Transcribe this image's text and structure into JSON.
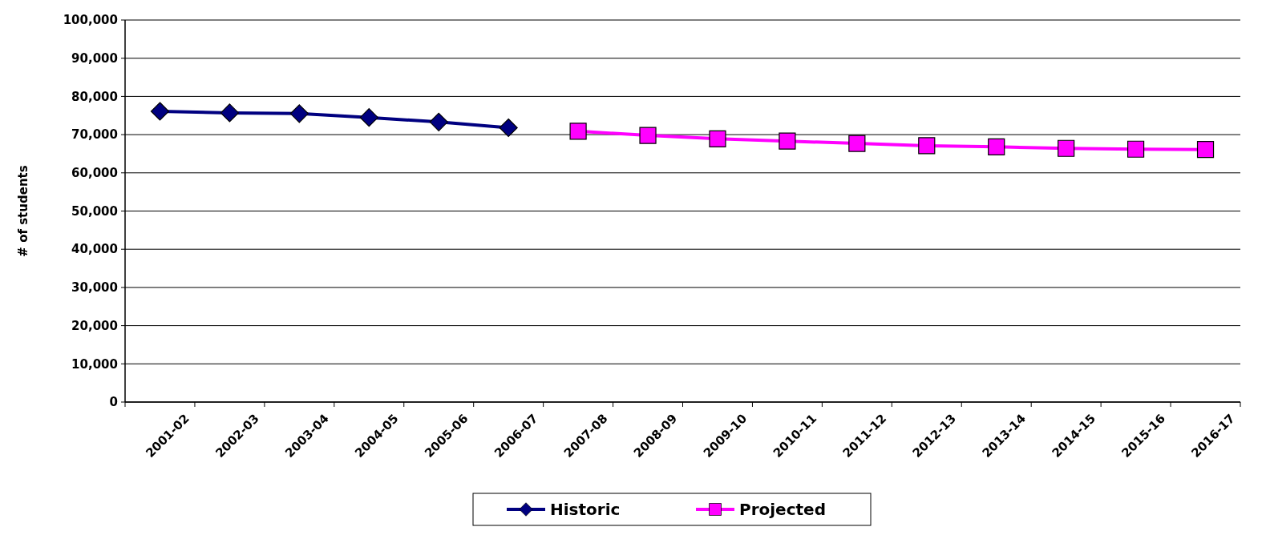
{
  "chart_data": {
    "type": "line",
    "ylabel": "# of students",
    "categories": [
      "2001-02",
      "2002-03",
      "2003-04",
      "2004-05",
      "2005-06",
      "2006-07",
      "2007-08",
      "2008-09",
      "2009-10",
      "2010-11",
      "2011-12",
      "2012-13",
      "2013-14",
      "2014-15",
      "2015-16",
      "2016-17"
    ],
    "series": [
      {
        "name": "Historic",
        "color": "#000080",
        "marker": "diamond",
        "values": [
          76100,
          75700,
          75500,
          74500,
          73300,
          71800,
          null,
          null,
          null,
          null,
          null,
          null,
          null,
          null,
          null,
          null
        ]
      },
      {
        "name": "Projected",
        "color": "#ff00ff",
        "marker": "square",
        "values": [
          null,
          null,
          null,
          null,
          null,
          null,
          70900,
          69800,
          68900,
          68300,
          67700,
          67100,
          66800,
          66400,
          66200,
          66100
        ]
      }
    ],
    "ylim": [
      0,
      100000
    ],
    "yticks": [
      {
        "value": 0,
        "label": "0"
      },
      {
        "value": 10000,
        "label": "10,000"
      },
      {
        "value": 20000,
        "label": "20,000"
      },
      {
        "value": 30000,
        "label": "30,000"
      },
      {
        "value": 40000,
        "label": "40,000"
      },
      {
        "value": 50000,
        "label": "50,000"
      },
      {
        "value": 60000,
        "label": "60,000"
      },
      {
        "value": 70000,
        "label": "70,000"
      },
      {
        "value": 80000,
        "label": "80,000"
      },
      {
        "value": 90000,
        "label": "90,000"
      },
      {
        "value": 100000,
        "label": "100,000"
      }
    ],
    "grid": "y",
    "legend": "bottom"
  }
}
